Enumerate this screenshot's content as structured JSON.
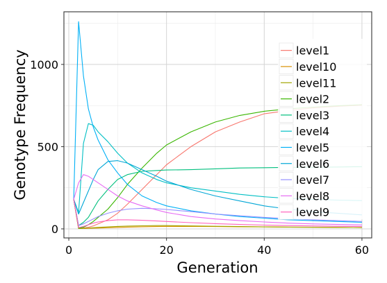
{
  "chart_data": {
    "type": "line",
    "title": "",
    "xlabel": "Generation",
    "ylabel": "Genotype Frequency",
    "xlim": [
      -1,
      62
    ],
    "ylim": [
      -55,
      1320
    ],
    "xticks": [
      0,
      20,
      40,
      60
    ],
    "yticks": [
      0,
      500,
      1000
    ],
    "grid": true,
    "legend": {
      "placement": "top-right",
      "title": ""
    },
    "x": [
      1,
      2,
      3,
      4,
      5,
      6,
      8,
      10,
      12,
      15,
      18,
      20,
      25,
      30,
      35,
      40,
      45,
      50,
      55,
      60
    ],
    "series": [
      {
        "name": "level1",
        "color": "#F8766D",
        "values": [
          180,
          5,
          5,
          10,
          18,
          30,
          55,
          95,
          150,
          240,
          330,
          390,
          500,
          590,
          650,
          700,
          720,
          735,
          745,
          752
        ]
      },
      {
        "name": "level10",
        "color": "#D89000",
        "values": [
          180,
          2,
          2,
          3,
          4,
          5,
          7,
          9,
          11,
          13,
          14,
          15,
          15,
          14,
          13,
          12,
          11,
          10,
          9,
          8
        ]
      },
      {
        "name": "level11",
        "color": "#A3A500",
        "values": [
          180,
          2,
          3,
          5,
          7,
          9,
          12,
          15,
          17,
          19,
          20,
          20,
          18,
          16,
          14,
          12,
          11,
          10,
          9,
          8
        ]
      },
      {
        "name": "level2",
        "color": "#39B600",
        "values": [
          180,
          5,
          10,
          25,
          45,
          70,
          120,
          190,
          270,
          370,
          460,
          510,
          590,
          650,
          690,
          715,
          730,
          740,
          748,
          755
        ]
      },
      {
        "name": "level3",
        "color": "#00BF7D",
        "values": [
          180,
          20,
          40,
          70,
          120,
          170,
          240,
          300,
          330,
          350,
          355,
          358,
          360,
          365,
          370,
          372,
          374,
          375,
          376,
          378
        ]
      },
      {
        "name": "level4",
        "color": "#00BFC4",
        "values": [
          180,
          100,
          520,
          640,
          630,
          590,
          530,
          460,
          400,
          340,
          300,
          280,
          250,
          230,
          210,
          195,
          185,
          180,
          175,
          172
        ]
      },
      {
        "name": "level5",
        "color": "#00B0F6",
        "values": [
          180,
          1260,
          930,
          730,
          620,
          540,
          420,
          340,
          270,
          200,
          160,
          140,
          110,
          90,
          75,
          65,
          55,
          50,
          45,
          40
        ]
      },
      {
        "name": "level6",
        "color": "#00A6D6",
        "values": [
          180,
          90,
          160,
          230,
          300,
          360,
          410,
          415,
          400,
          360,
          320,
          290,
          240,
          200,
          170,
          140,
          120,
          105,
          95,
          85
        ]
      },
      {
        "name": "level7",
        "color": "#9590FF",
        "values": [
          180,
          20,
          30,
          45,
          60,
          75,
          95,
          110,
          120,
          125,
          122,
          118,
          105,
          90,
          80,
          70,
          62,
          55,
          50,
          45
        ]
      },
      {
        "name": "level8",
        "color": "#E76BF3",
        "values": [
          180,
          280,
          330,
          320,
          300,
          280,
          240,
          200,
          170,
          140,
          115,
          100,
          75,
          60,
          50,
          42,
          35,
          30,
          27,
          24
        ]
      },
      {
        "name": "level9",
        "color": "#FF62BC",
        "values": [
          180,
          8,
          15,
          25,
          35,
          42,
          50,
          55,
          55,
          52,
          48,
          45,
          38,
          32,
          27,
          23,
          20,
          18,
          16,
          14
        ]
      }
    ]
  }
}
